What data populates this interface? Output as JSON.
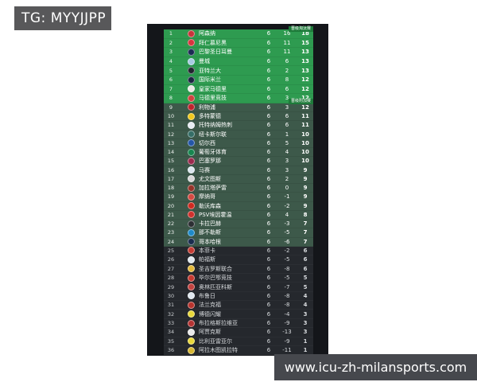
{
  "watermarks": {
    "tg_banner": "TG: MYYJJPP",
    "site_banner": "www.icu-zh-milansports.com"
  },
  "standings": {
    "zone_labels": {
      "direct": "晋级淘汰赛",
      "playoff": "晋级附加赛"
    },
    "colors": {
      "direct_zone": "#2e9b50",
      "playoff_zone": "#3d594a",
      "out_zone": "#25282d",
      "zone_tag": "#1e7b3a",
      "tg_banner_bg": "#58585a",
      "site_banner_bg": "#46484d"
    },
    "rows": [
      {
        "rank": 1,
        "team": "阿森纳",
        "played": 6,
        "gd": 16,
        "pts": 18,
        "zone": "direct",
        "badge": "#c8343b"
      },
      {
        "rank": 2,
        "team": "拜仁慕尼黑",
        "played": 6,
        "gd": 11,
        "pts": 15,
        "zone": "direct",
        "badge": "#d8353f"
      },
      {
        "rank": 3,
        "team": "巴黎圣日耳曼",
        "played": 6,
        "gd": 11,
        "pts": 13,
        "zone": "direct",
        "badge": "#1b2a54"
      },
      {
        "rank": 4,
        "team": "曼城",
        "played": 6,
        "gd": 6,
        "pts": 13,
        "zone": "direct",
        "badge": "#a8cbe2"
      },
      {
        "rank": 5,
        "team": "亚特兰大",
        "played": 6,
        "gd": 2,
        "pts": 13,
        "zone": "direct",
        "badge": "#20242e"
      },
      {
        "rank": 6,
        "team": "国际米兰",
        "played": 6,
        "gd": 8,
        "pts": 12,
        "zone": "direct",
        "badge": "#1b2440"
      },
      {
        "rank": 7,
        "team": "皇家马德里",
        "played": 6,
        "gd": 6,
        "pts": 12,
        "zone": "direct",
        "badge": "#e9e9e3"
      },
      {
        "rank": 8,
        "team": "马德里竞技",
        "played": 6,
        "gd": 3,
        "pts": 12,
        "zone": "direct",
        "badge": "#cf4440"
      },
      {
        "rank": 9,
        "team": "利物浦",
        "played": 6,
        "gd": 3,
        "pts": 12,
        "zone": "playoff",
        "badge": "#c0232c"
      },
      {
        "rank": 10,
        "team": "多特蒙德",
        "played": 6,
        "gd": 6,
        "pts": 11,
        "zone": "playoff",
        "badge": "#f2c91d"
      },
      {
        "rank": 11,
        "team": "托特纳姆热刺",
        "played": 6,
        "gd": 6,
        "pts": 11,
        "zone": "playoff",
        "badge": "#e7ecf2"
      },
      {
        "rank": 12,
        "team": "纽卡斯尔联",
        "played": 6,
        "gd": 1,
        "pts": 10,
        "zone": "playoff",
        "badge": "#356e67"
      },
      {
        "rank": 13,
        "team": "切尔西",
        "played": 6,
        "gd": 5,
        "pts": 10,
        "zone": "playoff",
        "badge": "#2456a8"
      },
      {
        "rank": 14,
        "team": "葡萄牙体育",
        "played": 6,
        "gd": 4,
        "pts": 10,
        "zone": "playoff",
        "badge": "#17864f"
      },
      {
        "rank": 15,
        "team": "巴塞罗那",
        "played": 6,
        "gd": 3,
        "pts": 10,
        "zone": "playoff",
        "badge": "#9c2a4e"
      },
      {
        "rank": 16,
        "team": "马赛",
        "played": 6,
        "gd": 3,
        "pts": 9,
        "zone": "playoff",
        "badge": "#dbe7ee"
      },
      {
        "rank": 17,
        "team": "尤文图斯",
        "played": 6,
        "gd": 2,
        "pts": 9,
        "zone": "playoff",
        "badge": "#d8d8d8"
      },
      {
        "rank": 18,
        "team": "加拉塔萨雷",
        "played": 6,
        "gd": 0,
        "pts": 9,
        "zone": "playoff",
        "badge": "#96342a"
      },
      {
        "rank": 19,
        "team": "摩纳哥",
        "played": 6,
        "gd": -1,
        "pts": 9,
        "zone": "playoff",
        "badge": "#d54a42"
      },
      {
        "rank": 20,
        "team": "勒沃库森",
        "played": 6,
        "gd": -2,
        "pts": 9,
        "zone": "playoff",
        "badge": "#cf2a20"
      },
      {
        "rank": 21,
        "team": "PSV埃因霍温",
        "played": 6,
        "gd": 4,
        "pts": 8,
        "zone": "playoff",
        "badge": "#d0312d"
      },
      {
        "rank": 22,
        "team": "卡拉巴赫",
        "played": 6,
        "gd": -3,
        "pts": 7,
        "zone": "playoff",
        "badge": "#2c2f33"
      },
      {
        "rank": 23,
        "team": "那不勒斯",
        "played": 6,
        "gd": -5,
        "pts": 7,
        "zone": "playoff",
        "badge": "#1f8ac9"
      },
      {
        "rank": 24,
        "team": "哥本哈根",
        "played": 6,
        "gd": -6,
        "pts": 7,
        "zone": "playoff",
        "badge": "#1a2c4e"
      },
      {
        "rank": 25,
        "team": "本菲卡",
        "played": 6,
        "gd": -2,
        "pts": 6,
        "zone": "out",
        "badge": "#c63c34"
      },
      {
        "rank": 26,
        "team": "帕福斯",
        "played": 6,
        "gd": -5,
        "pts": 6,
        "zone": "out",
        "badge": "#dfe7ee"
      },
      {
        "rank": 27,
        "team": "圣吉罗斯联合",
        "played": 6,
        "gd": -8,
        "pts": 6,
        "zone": "out",
        "badge": "#e3b93c"
      },
      {
        "rank": 28,
        "team": "毕尔巴鄂竞技",
        "played": 6,
        "gd": -5,
        "pts": 5,
        "zone": "out",
        "badge": "#c73a31"
      },
      {
        "rank": 29,
        "team": "奥林匹亚科斯",
        "played": 6,
        "gd": -7,
        "pts": 5,
        "zone": "out",
        "badge": "#c44340"
      },
      {
        "rank": 30,
        "team": "布鲁日",
        "played": 6,
        "gd": -8,
        "pts": 4,
        "zone": "out",
        "badge": "#dfe7ee"
      },
      {
        "rank": 31,
        "team": "法兰克福",
        "played": 6,
        "gd": -8,
        "pts": 4,
        "zone": "out",
        "badge": "#b8342e"
      },
      {
        "rank": 32,
        "team": "博德闪耀",
        "played": 6,
        "gd": -4,
        "pts": 3,
        "zone": "out",
        "badge": "#e9d83a"
      },
      {
        "rank": 33,
        "team": "布拉格斯拉维亚",
        "played": 6,
        "gd": -9,
        "pts": 3,
        "zone": "out",
        "badge": "#b53434"
      },
      {
        "rank": 34,
        "team": "阿贾克斯",
        "played": 6,
        "gd": -13,
        "pts": 3,
        "zone": "out",
        "badge": "#e9e9e9"
      },
      {
        "rank": 35,
        "team": "比利亚雷亚尔",
        "played": 6,
        "gd": -9,
        "pts": 1,
        "zone": "out",
        "badge": "#e9d83a"
      },
      {
        "rank": 36,
        "team": "阿拉木图凯拉特",
        "played": 6,
        "gd": -11,
        "pts": 1,
        "zone": "out",
        "badge": "#d8b833"
      }
    ]
  }
}
